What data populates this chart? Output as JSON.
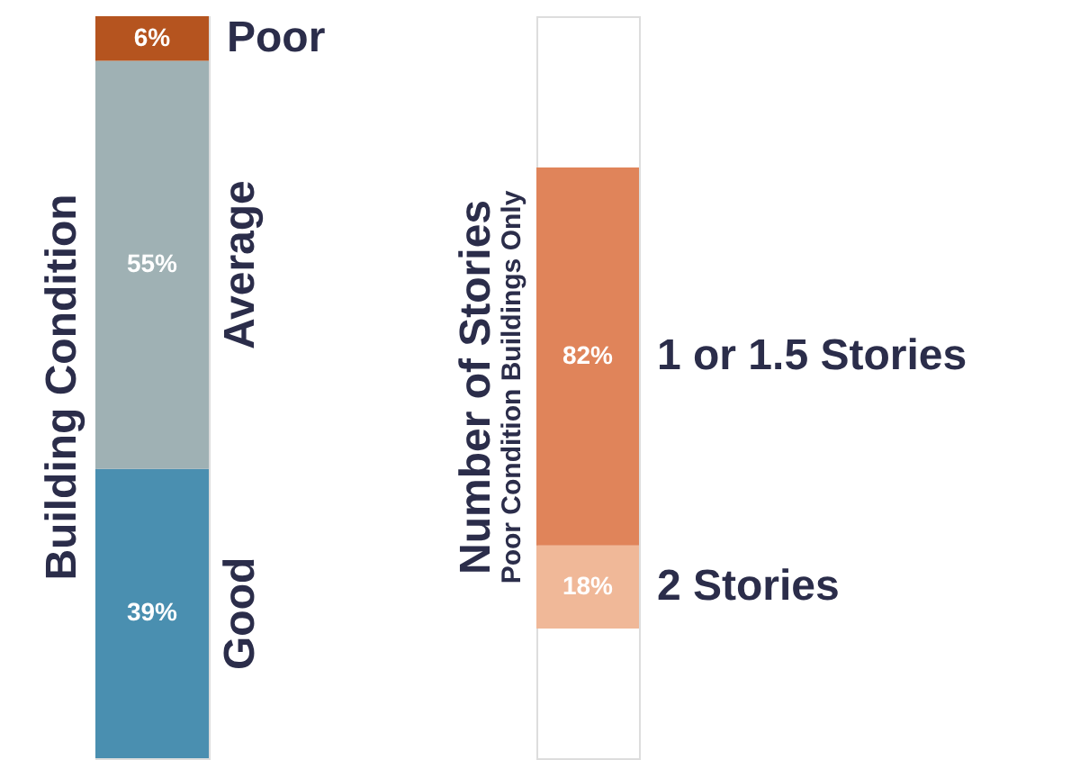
{
  "chart_data": [
    {
      "type": "bar",
      "stacked": true,
      "title": "Building Condition",
      "categories": [
        null
      ],
      "legend": false,
      "tick_labels": false,
      "series": [
        {
          "name": "Good",
          "color": "#4a8fb0",
          "values": [
            39
          ],
          "value_labels": [
            "39%"
          ]
        },
        {
          "name": "Average",
          "color": "#9fb1b4",
          "values": [
            55
          ],
          "value_labels": [
            "55%"
          ]
        },
        {
          "name": "Poor",
          "color": "#b5541f",
          "values": [
            6
          ],
          "value_labels": [
            "6%"
          ]
        }
      ]
    },
    {
      "type": "bar",
      "stacked": true,
      "title": "Number of Stories",
      "subtitle": "Poor Condition Buildings Only",
      "categories": [
        null
      ],
      "legend": false,
      "tick_labels": false,
      "series": [
        {
          "name": "2 Stories",
          "color": "#f0b898",
          "values": [
            18
          ],
          "value_labels": [
            "18%"
          ]
        },
        {
          "name": "1 or 1.5 Stories",
          "color": "#e0845a",
          "values": [
            82
          ],
          "value_labels": [
            "82%"
          ]
        }
      ]
    }
  ]
}
